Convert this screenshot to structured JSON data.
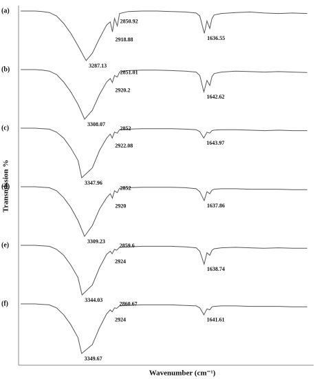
{
  "chart_data": {
    "type": "line",
    "xlabel": "Wavenumber (cm⁻¹)",
    "ylabel": "Transmission %",
    "xlim": [
      4230,
      120
    ],
    "ylim": [
      0,
      100
    ],
    "color": "#555555",
    "panels": [
      {
        "label": "(a)",
        "peaks": [
          3287.13,
          2918.88,
          2850.92,
          1636.55
        ],
        "x": [
          4200,
          4000,
          3900,
          3800,
          3700,
          3600,
          3500,
          3400,
          3287.13,
          3200,
          3100,
          3000,
          2950,
          2918.88,
          2890,
          2850.92,
          2820,
          2700,
          2500,
          2300,
          2100,
          1900,
          1750,
          1700,
          1636.55,
          1600,
          1560,
          1530,
          1500,
          1400,
          1200,
          1000,
          800,
          600,
          400,
          200
        ],
        "y": [
          100,
          100,
          99,
          97,
          90,
          75,
          55,
          30,
          0,
          15,
          45,
          72,
          78,
          58,
          85,
          70,
          95,
          99,
          100,
          100,
          99,
          98,
          96,
          90,
          55,
          80,
          65,
          85,
          92,
          95,
          97,
          98,
          96,
          95,
          96,
          95
        ]
      },
      {
        "label": "(b)",
        "peaks": [
          3308.07,
          2920.2,
          2851.01,
          1642.62
        ],
        "x": [
          4200,
          4000,
          3900,
          3800,
          3700,
          3600,
          3500,
          3400,
          3308.07,
          3200,
          3100,
          3000,
          2950,
          2920.2,
          2890,
          2851.01,
          2820,
          2700,
          2500,
          2300,
          2100,
          1900,
          1750,
          1700,
          1642.62,
          1600,
          1560,
          1530,
          1500,
          1400,
          1200,
          1000,
          800,
          600,
          400,
          200
        ],
        "y": [
          100,
          100,
          99,
          97,
          90,
          75,
          55,
          30,
          0,
          18,
          50,
          75,
          82,
          74,
          88,
          85,
          95,
          98,
          99,
          99,
          98,
          97,
          95,
          88,
          55,
          78,
          68,
          86,
          92,
          95,
          97,
          96,
          95,
          96,
          95,
          94
        ]
      },
      {
        "label": "(c)",
        "peaks": [
          3347.96,
          2922.08,
          2852,
          1643.97
        ],
        "x": [
          4200,
          4000,
          3900,
          3800,
          3700,
          3600,
          3500,
          3400,
          3347.96,
          3200,
          3100,
          3000,
          2950,
          2922.08,
          2890,
          2852,
          2820,
          2700,
          2500,
          2300,
          2100,
          1900,
          1750,
          1700,
          1643.97,
          1600,
          1560,
          1530,
          1500,
          1400,
          1200,
          1000,
          800,
          600,
          400,
          200
        ],
        "y": [
          100,
          100,
          99,
          98,
          92,
          80,
          60,
          35,
          0,
          20,
          55,
          80,
          88,
          80,
          92,
          90,
          97,
          98,
          99,
          99,
          99,
          98,
          97,
          93,
          80,
          92,
          90,
          95,
          96,
          97,
          97,
          96,
          95,
          96,
          95,
          95
        ]
      },
      {
        "label": "(d)",
        "peaks": [
          3309.23,
          2920,
          2852,
          1637.86
        ],
        "x": [
          4200,
          4000,
          3900,
          3800,
          3700,
          3600,
          3500,
          3400,
          3309.23,
          3200,
          3100,
          3000,
          2950,
          2920,
          2890,
          2852,
          2820,
          2700,
          2500,
          2300,
          2100,
          1900,
          1750,
          1700,
          1637.86,
          1600,
          1560,
          1530,
          1500,
          1400,
          1200,
          1000,
          800,
          600,
          400,
          200
        ],
        "y": [
          100,
          100,
          99,
          98,
          92,
          78,
          58,
          32,
          0,
          22,
          55,
          78,
          86,
          77,
          92,
          88,
          97,
          98,
          99,
          99,
          99,
          98,
          96,
          90,
          72,
          90,
          86,
          93,
          95,
          96,
          96,
          95,
          95,
          95,
          94,
          94
        ]
      },
      {
        "label": "(e)",
        "peaks": [
          3344.03,
          2924,
          2859.6,
          1638.74
        ],
        "x": [
          4200,
          4000,
          3900,
          3800,
          3700,
          3600,
          3500,
          3400,
          3344.03,
          3200,
          3100,
          3000,
          2950,
          2924,
          2890,
          2859.6,
          2820,
          2700,
          2500,
          2300,
          2100,
          1900,
          1750,
          1700,
          1638.74,
          1600,
          1560,
          1530,
          1500,
          1400,
          1200,
          1000,
          800,
          600,
          400,
          200
        ],
        "y": [
          100,
          100,
          99,
          98,
          92,
          80,
          60,
          35,
          0,
          20,
          55,
          82,
          88,
          83,
          92,
          90,
          96,
          97,
          98,
          98,
          98,
          97,
          95,
          88,
          62,
          85,
          80,
          90,
          93,
          95,
          96,
          95,
          94,
          95,
          94,
          94
        ]
      },
      {
        "label": "(f)",
        "peaks": [
          3349.67,
          2924,
          2860.67,
          1641.61
        ],
        "x": [
          4200,
          4000,
          3900,
          3800,
          3700,
          3600,
          3500,
          3400,
          3349.67,
          3200,
          3100,
          3000,
          2950,
          2924,
          2890,
          2860.67,
          2820,
          2700,
          2500,
          2300,
          2100,
          1900,
          1750,
          1700,
          1641.61,
          1600,
          1560,
          1530,
          1500,
          1400,
          1200,
          1000,
          800,
          600,
          400,
          200
        ],
        "y": [
          100,
          100,
          99,
          98,
          92,
          78,
          58,
          32,
          0,
          18,
          52,
          80,
          88,
          84,
          92,
          91,
          96,
          97,
          98,
          98,
          98,
          97,
          96,
          92,
          78,
          90,
          88,
          94,
          95,
          96,
          96,
          95,
          95,
          95,
          94,
          94
        ]
      }
    ]
  }
}
